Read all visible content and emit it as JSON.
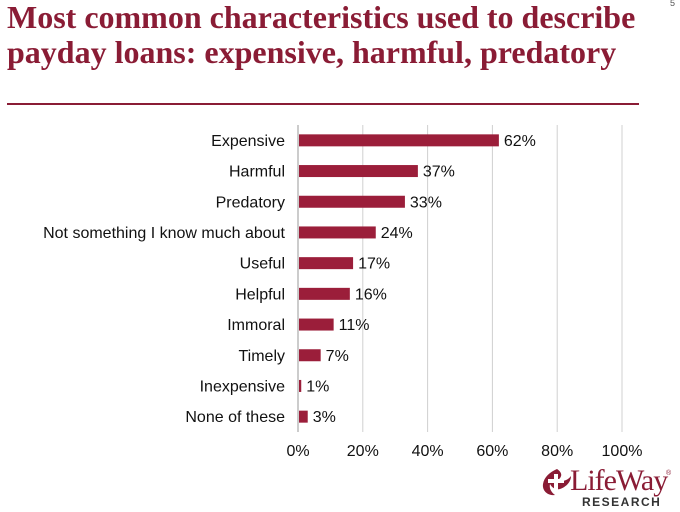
{
  "slide": {
    "title": "Most common characteristics used to describe payday loans: expensive, harmful, predatory",
    "page_number": "5"
  },
  "logo": {
    "name": "LifeWay",
    "tm": "®",
    "sub": "RESEARCH"
  },
  "chart_data": {
    "type": "bar",
    "orientation": "horizontal",
    "categories": [
      "Expensive",
      "Harmful",
      "Predatory",
      "Not something I know much about",
      "Useful",
      "Helpful",
      "Immoral",
      "Timely",
      "Inexpensive",
      "None of these"
    ],
    "values": [
      62,
      37,
      33,
      24,
      17,
      16,
      11,
      7,
      1,
      3
    ],
    "value_labels": [
      "62%",
      "37%",
      "33%",
      "24%",
      "17%",
      "16%",
      "11%",
      "7%",
      "1%",
      "3%"
    ],
    "xticks": [
      "0%",
      "20%",
      "40%",
      "60%",
      "80%",
      "100%"
    ],
    "xlim": [
      0,
      100
    ],
    "grid": true,
    "bar_color": "#9b1e3a",
    "title": "",
    "xlabel": "",
    "ylabel": ""
  }
}
